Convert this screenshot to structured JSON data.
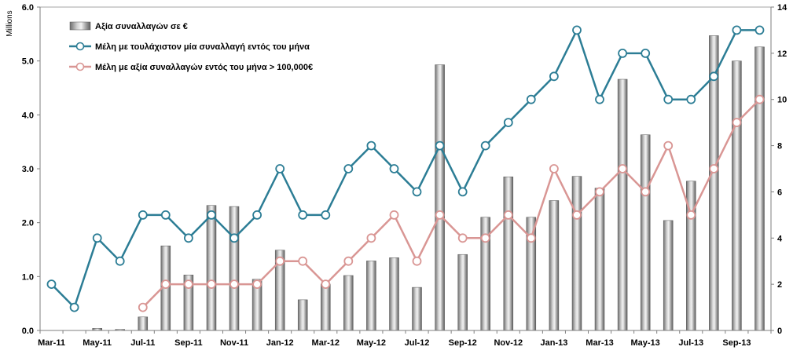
{
  "chart_data": {
    "type": "bar+line",
    "unit_label": "Millions",
    "y_left": {
      "min": 0,
      "max": 6,
      "step": 1,
      "tick_labels": [
        "0.0",
        "1.0",
        "2.0",
        "3.0",
        "4.0",
        "5.0",
        "6.0"
      ]
    },
    "y_right": {
      "min": 0,
      "max": 14,
      "step": 2,
      "tick_labels": [
        "0",
        "2",
        "4",
        "6",
        "8",
        "10",
        "12",
        "14"
      ]
    },
    "x_labels": [
      "Mar-11",
      "May-11",
      "Jul-11",
      "Sep-11",
      "Nov-11",
      "Jan-12",
      "Mar-12",
      "May-12",
      "Jul-12",
      "Sep-12",
      "Nov-12",
      "Jan-13",
      "Mar-13",
      "May-13",
      "Jul-13",
      "Sep-13"
    ],
    "months": [
      "Mar-11",
      "Apr-11",
      "May-11",
      "Jun-11",
      "Jul-11",
      "Aug-11",
      "Sep-11",
      "Oct-11",
      "Nov-11",
      "Dec-11",
      "Jan-12",
      "Feb-12",
      "Mar-12",
      "Apr-12",
      "May-12",
      "Jun-12",
      "Jul-12",
      "Aug-12",
      "Sep-12",
      "Oct-12",
      "Nov-12",
      "Dec-12",
      "Jan-13",
      "Feb-13",
      "Mar-13",
      "Apr-13",
      "May-13",
      "Jun-13",
      "Jul-13",
      "Aug-13",
      "Sep-13",
      "Oct-13"
    ],
    "series": [
      {
        "name": "Αξία συναλλαγών σε €",
        "type": "bar",
        "axis": "left",
        "color": "#9a9a9a",
        "values": [
          0,
          0,
          0.04,
          0.02,
          0.25,
          1.57,
          1.03,
          2.32,
          2.3,
          0.95,
          1.49,
          0.57,
          0.86,
          1.02,
          1.29,
          1.35,
          0.8,
          4.93,
          1.41,
          2.1,
          2.85,
          2.1,
          2.41,
          2.86,
          2.64,
          4.66,
          3.63,
          2.04,
          2.77,
          5.47,
          5.0,
          5.26
        ]
      },
      {
        "name": "Μέλη με τουλάχιστον μία συναλλαγή εντός του μήνα",
        "type": "line",
        "axis": "right",
        "color": "#2c7d95",
        "values": [
          2,
          1,
          4,
          3,
          5,
          5,
          4,
          5,
          4,
          5,
          7,
          5,
          5,
          7,
          8,
          7,
          6,
          8,
          6,
          8,
          9,
          10,
          11,
          13,
          10,
          12,
          12,
          10,
          10,
          11,
          13,
          13
        ]
      },
      {
        "name": "Μέλη με αξία συναλλαγών εντός του μήνα > 100,000€",
        "type": "line",
        "axis": "right",
        "color": "#d99694",
        "values": [
          null,
          null,
          null,
          null,
          1,
          2,
          2,
          2,
          2,
          2,
          3,
          3,
          2,
          3,
          4,
          5,
          3,
          5,
          4,
          4,
          5,
          4,
          7,
          5,
          6,
          7,
          6,
          8,
          5,
          7,
          9,
          10
        ]
      }
    ],
    "legend_position": "top-left"
  }
}
